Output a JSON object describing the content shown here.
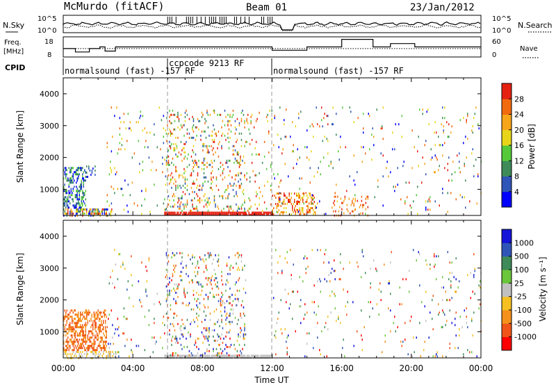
{
  "header": {
    "station": "McMurdo (fitACF)",
    "beam": "Beam 01",
    "date": "23/Jan/2012"
  },
  "noise_panel": {
    "left_label": "N.Sky",
    "right_label": "N.Search",
    "left_ticks": [
      "10^5",
      "10^0"
    ],
    "right_ticks": [
      "10^5",
      "10^0"
    ]
  },
  "freq_panel": {
    "left_label_1": "Freq.",
    "left_label_2": "[MHz]",
    "right_label": "Nave",
    "left_ticks": [
      "18",
      "8"
    ],
    "right_ticks": [
      "60",
      "0"
    ]
  },
  "cpid": {
    "label": "CPID",
    "segments": [
      "normalsound (fast) -157 RF",
      "ccpcode 9213 RF",
      "normalsound (fast) -157 RF"
    ]
  },
  "power_panel": {
    "ylabel": "Slant Range [km]",
    "yticks": [
      "1000",
      "2000",
      "3000",
      "4000"
    ],
    "colorbar_label": "Power [dB]",
    "colorbar_ticks": [
      "28",
      "24",
      "20",
      "16",
      "12",
      "8",
      "4"
    ],
    "colors": [
      "#0000ff",
      "#2f55b8",
      "#3e8a58",
      "#55c93a",
      "#e8d51a",
      "#f7a51a",
      "#f26a0e",
      "#e52212"
    ]
  },
  "velocity_panel": {
    "ylabel": "Slant Range [km]",
    "yticks": [
      "1000",
      "2000",
      "3000",
      "4000"
    ],
    "colorbar_label": "Velocity [m s⁻¹]",
    "colorbar_ticks": [
      "1000",
      "500",
      "100",
      "25",
      "-25",
      "-100",
      "-500",
      "-1000"
    ],
    "colors": [
      "#ff0000",
      "#f05418",
      "#f5901a",
      "#f5c020",
      "#c0c0c0",
      "#6ac63a",
      "#3e8a58",
      "#2f55b8",
      "#1414d8"
    ]
  },
  "x_axis": {
    "label": "Time UT",
    "ticks": [
      "00:00",
      "04:00",
      "08:00",
      "12:00",
      "16:00",
      "20:00",
      "00:00"
    ]
  },
  "chart_data": {
    "type": "heatmap",
    "title": "McMurdo (fitACF)",
    "subtitle": "Beam 01",
    "date": "23/Jan/2012",
    "xlabel": "Time UT",
    "ylabel": "Slant Range [km]",
    "xlim_hours": [
      0,
      24
    ],
    "ylim_km": [
      180,
      4500
    ],
    "x_ticks": [
      "00:00",
      "04:00",
      "08:00",
      "12:00",
      "16:00",
      "20:00",
      "00:00"
    ],
    "y_ticks": [
      1000,
      2000,
      3000,
      4000
    ],
    "grid": false,
    "mode_changes_hours": [
      6,
      12
    ],
    "cpid_segments": [
      {
        "start_h": 0,
        "end_h": 6,
        "label": "normalsound (fast) -157 RF"
      },
      {
        "start_h": 6,
        "end_h": 12,
        "label": "ccpcode 9213 RF"
      },
      {
        "start_h": 12,
        "end_h": 24,
        "label": "normalsound (fast) -157 RF"
      }
    ],
    "frequency_mhz_steps": [
      {
        "start_h": 0,
        "end_h": 0.7,
        "value": 11
      },
      {
        "start_h": 0.7,
        "end_h": 1.5,
        "value": 9
      },
      {
        "start_h": 1.5,
        "end_h": 2.1,
        "value": 11
      },
      {
        "start_h": 2.1,
        "end_h": 2.4,
        "value": 12
      },
      {
        "start_h": 2.4,
        "end_h": 3.0,
        "value": 9.5
      },
      {
        "start_h": 3.0,
        "end_h": 12.0,
        "value": 12
      },
      {
        "start_h": 12.0,
        "end_h": 14.0,
        "value": 10
      },
      {
        "start_h": 14.0,
        "end_h": 16.0,
        "value": 12
      },
      {
        "start_h": 16.0,
        "end_h": 17.8,
        "value": 16.5
      },
      {
        "start_h": 17.8,
        "end_h": 18.8,
        "value": 12
      },
      {
        "start_h": 18.8,
        "end_h": 20.2,
        "value": 14
      },
      {
        "start_h": 20.2,
        "end_h": 24.0,
        "value": 12
      }
    ],
    "power_colorbar": {
      "label": "Power [dB]",
      "ticks": [
        4,
        8,
        12,
        16,
        20,
        24,
        28
      ],
      "range": [
        0,
        32
      ]
    },
    "velocity_colorbar": {
      "label": "Velocity [m s-1]",
      "ticks": [
        -1000,
        -500,
        -100,
        -25,
        25,
        100,
        500,
        1000
      ]
    },
    "power_regions": [
      {
        "t0": 0.0,
        "t1": 1.3,
        "r0": 400,
        "r1": 1700,
        "density": 0.45,
        "cmin": 0,
        "cmax": 3
      },
      {
        "t0": 0.0,
        "t1": 2.8,
        "r0": 180,
        "r1": 400,
        "density": 0.5,
        "cmin": 0,
        "cmax": 7
      },
      {
        "t0": 1.2,
        "t1": 1.8,
        "r0": 1400,
        "r1": 1750,
        "density": 0.35,
        "cmin": 0,
        "cmax": 2
      },
      {
        "t0": 2.5,
        "t1": 6.0,
        "r0": 200,
        "r1": 3600,
        "density": 0.035,
        "cmin": 0,
        "cmax": 6
      },
      {
        "t0": 5.8,
        "t1": 10.5,
        "r0": 180,
        "r1": 300,
        "density": 0.95,
        "cmin": 7,
        "cmax": 7
      },
      {
        "t0": 5.9,
        "t1": 10.4,
        "r0": 300,
        "r1": 3500,
        "density": 0.14,
        "cmin": 1,
        "cmax": 7
      },
      {
        "t0": 10.4,
        "t1": 12.0,
        "r0": 180,
        "r1": 300,
        "density": 0.9,
        "cmin": 7,
        "cmax": 7
      },
      {
        "t0": 10.4,
        "t1": 12.0,
        "r0": 300,
        "r1": 3500,
        "density": 0.05,
        "cmin": 2,
        "cmax": 7
      },
      {
        "t0": 12.0,
        "t1": 14.5,
        "r0": 200,
        "r1": 900,
        "density": 0.3,
        "cmin": 4,
        "cmax": 7
      },
      {
        "t0": 12.0,
        "t1": 24.0,
        "r0": 200,
        "r1": 3600,
        "density": 0.025,
        "cmin": 0,
        "cmax": 7
      },
      {
        "t0": 15.5,
        "t1": 17.5,
        "r0": 200,
        "r1": 800,
        "density": 0.15,
        "cmin": 5,
        "cmax": 7
      }
    ],
    "velocity_regions": [
      {
        "t0": 0.0,
        "t1": 2.5,
        "r0": 400,
        "r1": 1700,
        "density": 0.5,
        "cmin": 1,
        "cmax": 2
      },
      {
        "t0": 0.0,
        "t1": 3.0,
        "r0": 180,
        "r1": 400,
        "density": 0.4,
        "cmin": 3,
        "cmax": 4
      },
      {
        "t0": 2.5,
        "t1": 6.0,
        "r0": 200,
        "r1": 3600,
        "density": 0.03,
        "cmin": 0,
        "cmax": 8
      },
      {
        "t0": 5.8,
        "t1": 12.0,
        "r0": 180,
        "r1": 280,
        "density": 0.9,
        "cmin": 4,
        "cmax": 4
      },
      {
        "t0": 5.9,
        "t1": 10.5,
        "r0": 280,
        "r1": 3500,
        "density": 0.12,
        "cmin": 0,
        "cmax": 8
      },
      {
        "t0": 12.0,
        "t1": 24.0,
        "r0": 200,
        "r1": 3600,
        "density": 0.025,
        "cmin": 0,
        "cmax": 8
      }
    ]
  }
}
